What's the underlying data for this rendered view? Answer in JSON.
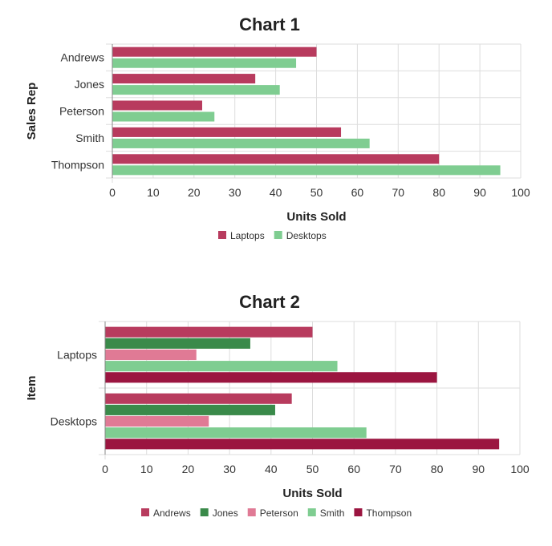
{
  "colors": {
    "laptops": "#b83b5e",
    "desktops": "#7fcd91",
    "andrews": "#b83b5e",
    "jones": "#3a8a4a",
    "peterson": "#e07a95",
    "smith": "#7fcd91",
    "thompson": "#9b1540"
  },
  "chart_data": [
    {
      "type": "bar",
      "orientation": "horizontal",
      "title": "Chart 1",
      "xlabel": "Units Sold",
      "ylabel": "Sales Rep",
      "xlim": [
        0,
        100
      ],
      "ticks": [
        "0",
        "10",
        "20",
        "30",
        "40",
        "50",
        "60",
        "70",
        "80",
        "90",
        "100"
      ],
      "categories": [
        "Andrews",
        "Jones",
        "Peterson",
        "Smith",
        "Thompson"
      ],
      "series": [
        {
          "name": "Laptops",
          "color": "#b83b5e",
          "values": [
            50,
            35,
            22,
            56,
            80
          ]
        },
        {
          "name": "Desktops",
          "color": "#7fcd91",
          "values": [
            45,
            41,
            25,
            63,
            95
          ]
        }
      ],
      "grid": true,
      "legend": "bottom"
    },
    {
      "type": "bar",
      "orientation": "horizontal",
      "title": "Chart 2",
      "xlabel": "Units Sold",
      "ylabel": "Item",
      "xlim": [
        0,
        100
      ],
      "ticks": [
        "0",
        "10",
        "20",
        "30",
        "40",
        "50",
        "60",
        "70",
        "80",
        "90",
        "100"
      ],
      "categories": [
        "Laptops",
        "Desktops"
      ],
      "series": [
        {
          "name": "Andrews",
          "color": "#b83b5e",
          "values": [
            50,
            45
          ]
        },
        {
          "name": "Jones",
          "color": "#3a8a4a",
          "values": [
            35,
            41
          ]
        },
        {
          "name": "Peterson",
          "color": "#e07a95",
          "values": [
            22,
            25
          ]
        },
        {
          "name": "Smith",
          "color": "#7fcd91",
          "values": [
            56,
            63
          ]
        },
        {
          "name": "Thompson",
          "color": "#9b1540",
          "values": [
            80,
            95
          ]
        }
      ],
      "grid": true,
      "legend": "bottom"
    }
  ]
}
